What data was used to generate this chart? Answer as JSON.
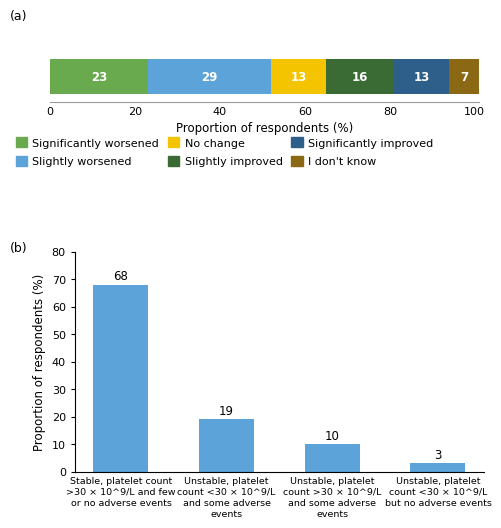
{
  "panel_a": {
    "values": [
      23,
      29,
      13,
      16,
      13,
      7
    ],
    "colors": [
      "#6aaa4e",
      "#5ba3d9",
      "#f5c400",
      "#3a6b35",
      "#2e5f8a",
      "#8b6914"
    ],
    "labels": [
      "Significantly worsened",
      "Slightly worsened",
      "No change",
      "Slightly improved",
      "Significantly improved",
      "I don't know"
    ],
    "xlabel": "Proportion of respondents (%)",
    "xlim": [
      0,
      101
    ],
    "xticks": [
      0,
      20,
      40,
      60,
      80,
      100
    ]
  },
  "panel_b": {
    "categories": [
      "Stable, platelet count\n>30 × 10^9/L and few\nor no adverse events",
      "Unstable, platelet\ncount <30 × 10^9/L\nand some adverse\nevents",
      "Unstable, platelet\ncount >30 × 10^9/L\nand some adverse\nevents",
      "Unstable, platelet\ncount <30 × 10^9/L\nbut no adverse events"
    ],
    "values": [
      68,
      19,
      10,
      3
    ],
    "bar_color": "#5ba3d9",
    "ylabel": "Proportion of respondents (%)",
    "ylim": [
      0,
      80
    ],
    "yticks": [
      0,
      10,
      20,
      30,
      40,
      50,
      60,
      70,
      80
    ]
  },
  "label_a": "(a)",
  "label_b": "(b)"
}
